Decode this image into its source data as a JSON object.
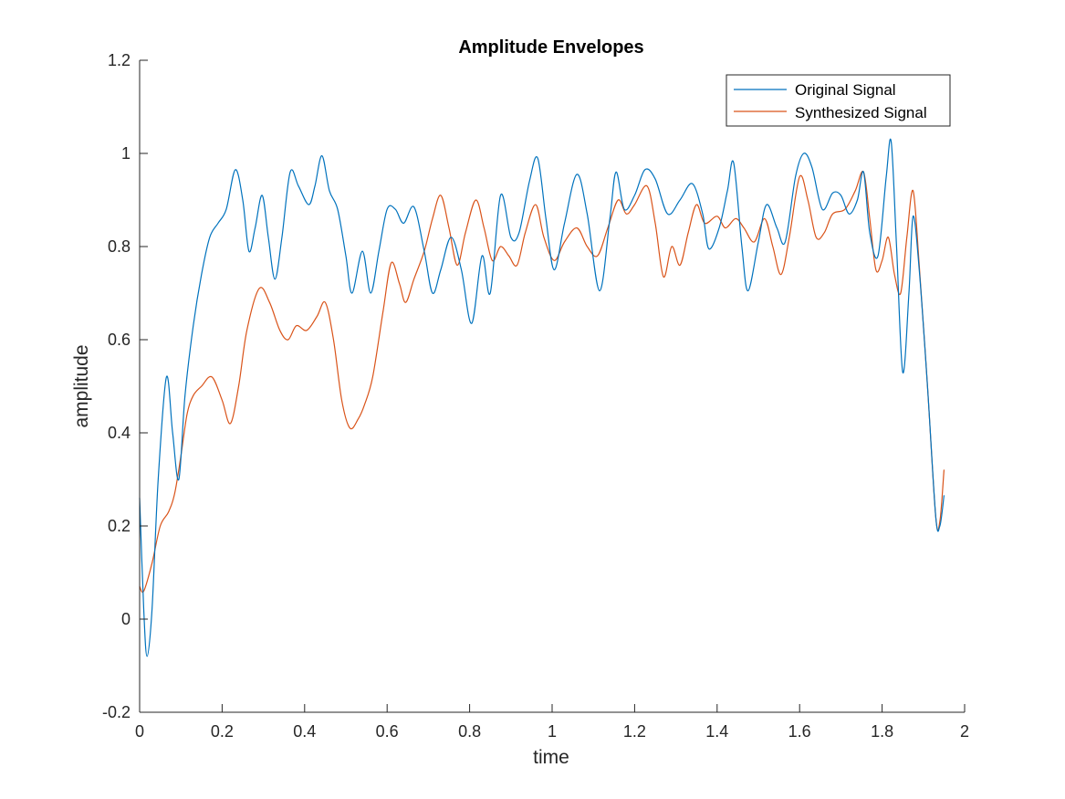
{
  "chart_data": {
    "type": "line",
    "title": "Amplitude Envelopes",
    "xlabel": "time",
    "ylabel": "amplitude",
    "xlim": [
      0,
      2
    ],
    "ylim": [
      -0.2,
      1.2
    ],
    "xticks": [
      0,
      0.2,
      0.4,
      0.6,
      0.8,
      1,
      1.2,
      1.4,
      1.6,
      1.8,
      2
    ],
    "yticks": [
      -0.2,
      0,
      0.2,
      0.4,
      0.6,
      0.8,
      1,
      1.2
    ],
    "xtick_labels": [
      "0",
      "0.2",
      "0.4",
      "0.6",
      "0.8",
      "1",
      "1.2",
      "1.4",
      "1.6",
      "1.8",
      "2"
    ],
    "ytick_labels": [
      "-0.2",
      "0",
      "0.2",
      "0.4",
      "0.6",
      "0.8",
      "1",
      "1.2"
    ],
    "grid": false,
    "legend_position": "top-right",
    "series": [
      {
        "name": "Original Signal",
        "color": "#0072BD",
        "points": [
          [
            0,
            0.26
          ],
          [
            0.01,
            0.02
          ],
          [
            0.018,
            -0.08
          ],
          [
            0.03,
            0.02
          ],
          [
            0.045,
            0.3
          ],
          [
            0.065,
            0.52
          ],
          [
            0.08,
            0.4
          ],
          [
            0.095,
            0.3
          ],
          [
            0.11,
            0.48
          ],
          [
            0.13,
            0.63
          ],
          [
            0.15,
            0.74
          ],
          [
            0.17,
            0.82
          ],
          [
            0.19,
            0.85
          ],
          [
            0.21,
            0.88
          ],
          [
            0.232,
            0.965
          ],
          [
            0.25,
            0.9
          ],
          [
            0.265,
            0.79
          ],
          [
            0.28,
            0.84
          ],
          [
            0.297,
            0.91
          ],
          [
            0.312,
            0.82
          ],
          [
            0.328,
            0.73
          ],
          [
            0.345,
            0.82
          ],
          [
            0.365,
            0.96
          ],
          [
            0.385,
            0.93
          ],
          [
            0.41,
            0.89
          ],
          [
            0.425,
            0.93
          ],
          [
            0.442,
            0.995
          ],
          [
            0.46,
            0.92
          ],
          [
            0.48,
            0.88
          ],
          [
            0.5,
            0.78
          ],
          [
            0.515,
            0.7
          ],
          [
            0.54,
            0.79
          ],
          [
            0.56,
            0.7
          ],
          [
            0.58,
            0.79
          ],
          [
            0.6,
            0.88
          ],
          [
            0.62,
            0.88
          ],
          [
            0.64,
            0.85
          ],
          [
            0.665,
            0.885
          ],
          [
            0.69,
            0.79
          ],
          [
            0.71,
            0.7
          ],
          [
            0.73,
            0.75
          ],
          [
            0.755,
            0.82
          ],
          [
            0.78,
            0.75
          ],
          [
            0.805,
            0.635
          ],
          [
            0.83,
            0.78
          ],
          [
            0.85,
            0.7
          ],
          [
            0.875,
            0.91
          ],
          [
            0.9,
            0.82
          ],
          [
            0.92,
            0.83
          ],
          [
            0.945,
            0.94
          ],
          [
            0.965,
            0.99
          ],
          [
            0.985,
            0.86
          ],
          [
            1.005,
            0.75
          ],
          [
            1.03,
            0.85
          ],
          [
            1.06,
            0.955
          ],
          [
            1.085,
            0.87
          ],
          [
            1.115,
            0.705
          ],
          [
            1.14,
            0.86
          ],
          [
            1.155,
            0.96
          ],
          [
            1.175,
            0.88
          ],
          [
            1.2,
            0.91
          ],
          [
            1.225,
            0.965
          ],
          [
            1.25,
            0.945
          ],
          [
            1.28,
            0.87
          ],
          [
            1.31,
            0.9
          ],
          [
            1.34,
            0.935
          ],
          [
            1.365,
            0.87
          ],
          [
            1.38,
            0.795
          ],
          [
            1.405,
            0.84
          ],
          [
            1.425,
            0.92
          ],
          [
            1.44,
            0.98
          ],
          [
            1.46,
            0.8
          ],
          [
            1.475,
            0.705
          ],
          [
            1.5,
            0.81
          ],
          [
            1.52,
            0.89
          ],
          [
            1.545,
            0.84
          ],
          [
            1.565,
            0.81
          ],
          [
            1.59,
            0.95
          ],
          [
            1.61,
            1.0
          ],
          [
            1.63,
            0.97
          ],
          [
            1.655,
            0.88
          ],
          [
            1.68,
            0.915
          ],
          [
            1.7,
            0.91
          ],
          [
            1.72,
            0.87
          ],
          [
            1.74,
            0.9
          ],
          [
            1.755,
            0.96
          ],
          [
            1.77,
            0.83
          ],
          [
            1.79,
            0.78
          ],
          [
            1.81,
            0.95
          ],
          [
            1.822,
            1.025
          ],
          [
            1.835,
            0.8
          ],
          [
            1.85,
            0.53
          ],
          [
            1.865,
            0.7
          ],
          [
            1.875,
            0.865
          ],
          [
            1.89,
            0.75
          ],
          [
            1.91,
            0.5
          ],
          [
            1.93,
            0.22
          ],
          [
            1.94,
            0.2
          ],
          [
            1.95,
            0.265
          ]
        ]
      },
      {
        "name": "Synthesized Signal",
        "color": "#D95319",
        "points": [
          [
            0,
            0.07
          ],
          [
            0.01,
            0.06
          ],
          [
            0.03,
            0.12
          ],
          [
            0.05,
            0.2
          ],
          [
            0.07,
            0.23
          ],
          [
            0.085,
            0.27
          ],
          [
            0.1,
            0.35
          ],
          [
            0.115,
            0.44
          ],
          [
            0.13,
            0.48
          ],
          [
            0.15,
            0.5
          ],
          [
            0.175,
            0.52
          ],
          [
            0.2,
            0.47
          ],
          [
            0.22,
            0.42
          ],
          [
            0.24,
            0.5
          ],
          [
            0.26,
            0.62
          ],
          [
            0.29,
            0.71
          ],
          [
            0.315,
            0.68
          ],
          [
            0.34,
            0.62
          ],
          [
            0.36,
            0.6
          ],
          [
            0.38,
            0.63
          ],
          [
            0.405,
            0.62
          ],
          [
            0.43,
            0.65
          ],
          [
            0.45,
            0.68
          ],
          [
            0.47,
            0.6
          ],
          [
            0.49,
            0.47
          ],
          [
            0.51,
            0.41
          ],
          [
            0.53,
            0.43
          ],
          [
            0.545,
            0.46
          ],
          [
            0.565,
            0.52
          ],
          [
            0.59,
            0.66
          ],
          [
            0.61,
            0.765
          ],
          [
            0.63,
            0.72
          ],
          [
            0.645,
            0.68
          ],
          [
            0.665,
            0.73
          ],
          [
            0.69,
            0.79
          ],
          [
            0.71,
            0.86
          ],
          [
            0.73,
            0.91
          ],
          [
            0.75,
            0.84
          ],
          [
            0.77,
            0.76
          ],
          [
            0.79,
            0.83
          ],
          [
            0.815,
            0.9
          ],
          [
            0.835,
            0.84
          ],
          [
            0.855,
            0.77
          ],
          [
            0.875,
            0.8
          ],
          [
            0.895,
            0.78
          ],
          [
            0.915,
            0.76
          ],
          [
            0.935,
            0.83
          ],
          [
            0.96,
            0.89
          ],
          [
            0.98,
            0.82
          ],
          [
            1.005,
            0.77
          ],
          [
            1.03,
            0.81
          ],
          [
            1.06,
            0.84
          ],
          [
            1.085,
            0.8
          ],
          [
            1.11,
            0.78
          ],
          [
            1.135,
            0.84
          ],
          [
            1.16,
            0.9
          ],
          [
            1.18,
            0.87
          ],
          [
            1.2,
            0.89
          ],
          [
            1.23,
            0.93
          ],
          [
            1.25,
            0.85
          ],
          [
            1.27,
            0.735
          ],
          [
            1.29,
            0.8
          ],
          [
            1.31,
            0.76
          ],
          [
            1.33,
            0.83
          ],
          [
            1.35,
            0.89
          ],
          [
            1.37,
            0.85
          ],
          [
            1.4,
            0.865
          ],
          [
            1.42,
            0.84
          ],
          [
            1.445,
            0.86
          ],
          [
            1.465,
            0.84
          ],
          [
            1.49,
            0.81
          ],
          [
            1.515,
            0.86
          ],
          [
            1.535,
            0.8
          ],
          [
            1.555,
            0.74
          ],
          [
            1.575,
            0.82
          ],
          [
            1.6,
            0.95
          ],
          [
            1.62,
            0.9
          ],
          [
            1.64,
            0.82
          ],
          [
            1.66,
            0.83
          ],
          [
            1.68,
            0.87
          ],
          [
            1.71,
            0.88
          ],
          [
            1.735,
            0.92
          ],
          [
            1.755,
            0.96
          ],
          [
            1.77,
            0.86
          ],
          [
            1.785,
            0.75
          ],
          [
            1.8,
            0.77
          ],
          [
            1.815,
            0.82
          ],
          [
            1.83,
            0.74
          ],
          [
            1.845,
            0.7
          ],
          [
            1.86,
            0.82
          ],
          [
            1.875,
            0.92
          ],
          [
            1.89,
            0.76
          ],
          [
            1.91,
            0.5
          ],
          [
            1.93,
            0.22
          ],
          [
            1.94,
            0.21
          ],
          [
            1.95,
            0.32
          ]
        ]
      }
    ]
  }
}
